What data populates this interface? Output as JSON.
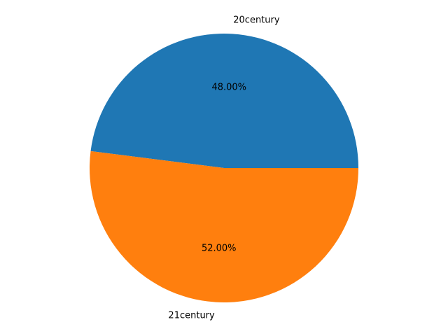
{
  "chart_data": {
    "type": "pie",
    "title": "",
    "labels": [
      "20century",
      "21century"
    ],
    "values": [
      48,
      52
    ],
    "percent_labels": [
      "48.00%",
      "52.00%"
    ],
    "colors": [
      "#1f77b4",
      "#ff7f0e"
    ],
    "start_angle": 0,
    "direction": "counterclockwise",
    "legend": "none"
  }
}
